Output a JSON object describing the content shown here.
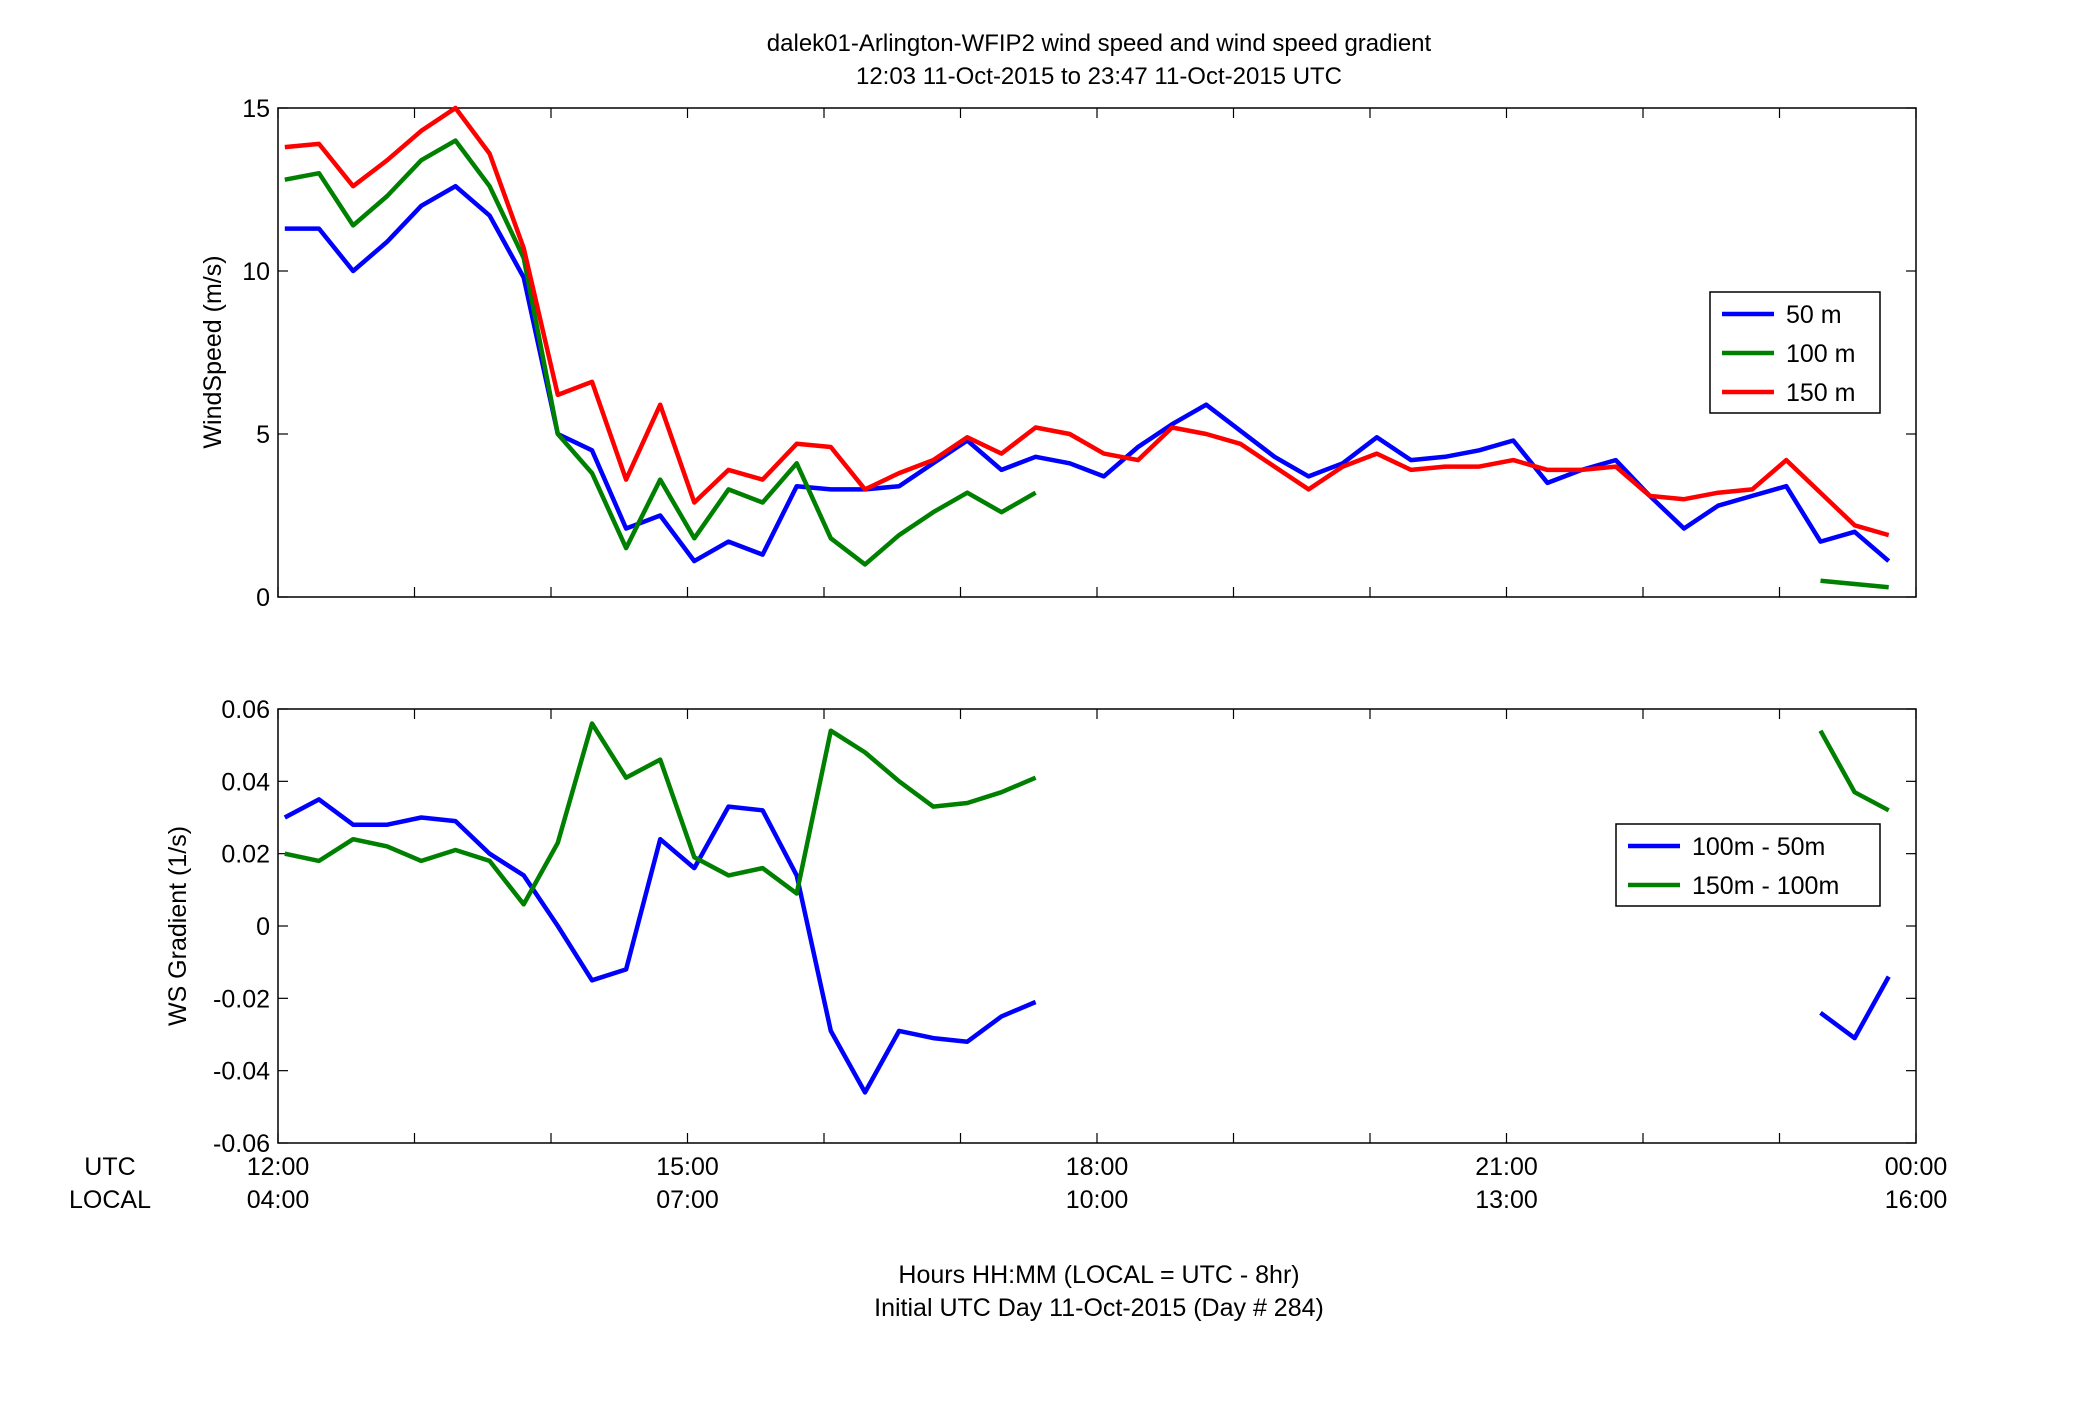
{
  "figure": {
    "title_line1": "dalek01-Arlington-WFIP2  wind speed and wind speed gradient",
    "title_line2": "12:03 11-Oct-2015 to 23:47 11-Oct-2015  UTC",
    "xaxis": {
      "row_label_utc": "UTC",
      "row_label_local": "LOCAL",
      "ticks_utc": [
        "12:00",
        "15:00",
        "18:00",
        "21:00",
        "00:00"
      ],
      "ticks_local": [
        "04:00",
        "07:00",
        "10:00",
        "13:00",
        "16:00"
      ],
      "caption_line1": "Hours HH:MM  (LOCAL = UTC - 8hr)",
      "caption_line2": "Initial UTC Day 11-Oct-2015 (Day # 284)"
    }
  },
  "chart_data": [
    {
      "type": "line",
      "title": "",
      "ylabel": "WindSpeed (m/s)",
      "xlim": [
        12.0,
        24.0
      ],
      "ylim": [
        0,
        15
      ],
      "yticks": [
        0,
        5,
        10,
        15
      ],
      "yticklabels": [
        "0",
        "5",
        "10",
        "15"
      ],
      "legend_placement": "right",
      "series": [
        {
          "name": "50 m",
          "color": "#0000ff",
          "x": [
            12.05,
            12.3,
            12.55,
            12.8,
            13.05,
            13.3,
            13.55,
            13.8,
            14.05,
            14.3,
            14.55,
            14.8,
            15.05,
            15.3,
            15.55,
            15.8,
            16.05,
            16.3,
            16.55,
            16.8,
            17.05,
            17.3,
            17.55,
            17.8,
            18.05,
            18.3,
            18.55,
            18.8,
            19.05,
            19.3,
            19.55,
            19.8,
            20.05,
            20.3,
            20.55,
            20.8,
            21.05,
            21.3,
            21.55,
            21.8,
            22.05,
            22.3,
            22.55,
            22.8,
            23.05,
            23.3,
            23.55,
            23.8
          ],
          "y": [
            11.3,
            11.3,
            10.0,
            10.9,
            12.0,
            12.6,
            11.7,
            9.8,
            5.0,
            4.5,
            2.1,
            2.5,
            1.1,
            1.7,
            1.3,
            3.4,
            3.3,
            3.3,
            3.4,
            4.1,
            4.8,
            3.9,
            4.3,
            4.1,
            3.7,
            4.6,
            5.3,
            5.9,
            5.1,
            4.3,
            3.7,
            4.1,
            4.9,
            4.2,
            4.3,
            4.5,
            4.8,
            3.5,
            3.9,
            4.2,
            3.1,
            2.1,
            2.8,
            3.1,
            3.4,
            1.7,
            2.0,
            1.1
          ]
        },
        {
          "name": "100 m",
          "color": "#008000",
          "x": [
            12.05,
            12.3,
            12.55,
            12.8,
            13.05,
            13.3,
            13.55,
            13.8,
            14.05,
            14.3,
            14.55,
            14.8,
            15.05,
            15.3,
            15.55,
            15.8,
            16.05,
            16.3,
            16.55,
            16.8,
            17.05,
            17.3,
            17.55,
            null,
            23.3,
            23.55,
            23.8
          ],
          "y": [
            12.8,
            13.0,
            11.4,
            12.3,
            13.4,
            14.0,
            12.6,
            10.4,
            5.0,
            3.8,
            1.5,
            3.6,
            1.8,
            3.3,
            2.9,
            4.1,
            1.8,
            1.0,
            1.9,
            2.6,
            3.2,
            2.6,
            3.2,
            null,
            0.5,
            0.4,
            0.3
          ]
        },
        {
          "name": "150 m",
          "color": "#ff0000",
          "x": [
            12.05,
            12.3,
            12.55,
            12.8,
            13.05,
            13.3,
            13.55,
            13.8,
            14.05,
            14.3,
            14.55,
            14.8,
            15.05,
            15.3,
            15.55,
            15.8,
            16.05,
            16.3,
            16.55,
            16.8,
            17.05,
            17.3,
            17.55,
            17.8,
            18.05,
            18.3,
            18.55,
            18.8,
            19.05,
            19.3,
            19.55,
            19.8,
            20.05,
            20.3,
            20.55,
            20.8,
            21.05,
            21.3,
            21.55,
            21.8,
            22.05,
            22.3,
            22.55,
            22.8,
            23.05,
            23.3,
            23.55,
            23.8
          ],
          "y": [
            13.8,
            13.9,
            12.6,
            13.4,
            14.3,
            15.0,
            13.6,
            10.7,
            6.2,
            6.6,
            3.6,
            5.9,
            2.9,
            3.9,
            3.6,
            4.7,
            4.6,
            3.3,
            3.8,
            4.2,
            4.9,
            4.4,
            5.2,
            5.0,
            4.4,
            4.2,
            5.2,
            5.0,
            4.7,
            4.0,
            3.3,
            4.0,
            4.4,
            3.9,
            4.0,
            4.0,
            4.2,
            3.9,
            3.9,
            4.0,
            3.1,
            3.0,
            3.2,
            3.3,
            4.2,
            3.2,
            2.2,
            1.9
          ]
        }
      ]
    },
    {
      "type": "line",
      "title": "",
      "ylabel": "WS Gradient (1/s)",
      "xlim": [
        12.0,
        24.0
      ],
      "ylim": [
        -0.06,
        0.06
      ],
      "yticks": [
        -0.06,
        -0.04,
        -0.02,
        0,
        0.02,
        0.04,
        0.06
      ],
      "yticklabels": [
        "-0.06",
        "-0.04",
        "-0.02",
        "0",
        "0.02",
        "0.04",
        "0.06"
      ],
      "legend_placement": "right",
      "series": [
        {
          "name": "100m - 50m",
          "color": "#0000ff",
          "x": [
            12.05,
            12.3,
            12.55,
            12.8,
            13.05,
            13.3,
            13.55,
            13.8,
            14.05,
            14.3,
            14.55,
            14.8,
            15.05,
            15.3,
            15.55,
            15.8,
            16.05,
            16.3,
            16.55,
            16.8,
            17.05,
            17.3,
            17.55,
            null,
            23.3,
            23.55,
            23.8
          ],
          "y": [
            0.03,
            0.035,
            0.028,
            0.028,
            0.03,
            0.029,
            0.02,
            0.014,
            0.0,
            -0.015,
            -0.012,
            0.024,
            0.016,
            0.033,
            0.032,
            0.014,
            -0.029,
            -0.046,
            -0.029,
            -0.031,
            -0.032,
            -0.025,
            -0.021,
            null,
            -0.024,
            -0.031,
            -0.014
          ]
        },
        {
          "name": "150m - 100m",
          "color": "#008000",
          "x": [
            12.05,
            12.3,
            12.55,
            12.8,
            13.05,
            13.3,
            13.55,
            13.8,
            14.05,
            14.3,
            14.55,
            14.8,
            15.05,
            15.3,
            15.55,
            15.8,
            16.05,
            16.3,
            16.55,
            16.8,
            17.05,
            17.3,
            17.55,
            null,
            23.3,
            23.55,
            23.8
          ],
          "y": [
            0.02,
            0.018,
            0.024,
            0.022,
            0.018,
            0.021,
            0.018,
            0.006,
            0.023,
            0.056,
            0.041,
            0.046,
            0.019,
            0.014,
            0.016,
            0.009,
            0.054,
            0.048,
            0.04,
            0.033,
            0.034,
            0.037,
            0.041,
            null,
            0.054,
            0.037,
            0.032
          ]
        }
      ]
    }
  ]
}
